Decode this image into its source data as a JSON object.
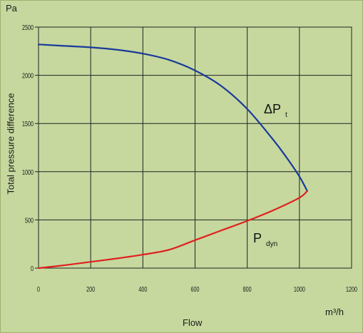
{
  "chart_data": {
    "type": "line",
    "title": "",
    "xlabel": "Flow",
    "ylabel": "Total pressure difference",
    "x_unit": "m³/h",
    "y_unit": "Pa",
    "xlim": [
      0,
      1200
    ],
    "ylim": [
      0,
      2500
    ],
    "x_ticks": [
      "0",
      "200",
      "400",
      "600",
      "800",
      "1000",
      "1200"
    ],
    "y_ticks": [
      "0",
      "500",
      "1000",
      "1500",
      "2000",
      "2500"
    ],
    "grid": true,
    "series": [
      {
        "name": "ΔPt",
        "label_main": "ΔP",
        "label_sub": "t",
        "color": "#1a3a9a",
        "x": [
          0,
          100,
          200,
          300,
          400,
          500,
          600,
          700,
          800,
          900,
          950,
          1000,
          1030
        ],
        "y": [
          2320,
          2305,
          2290,
          2265,
          2225,
          2160,
          2050,
          1890,
          1650,
          1330,
          1150,
          950,
          800
        ]
      },
      {
        "name": "Pdyn",
        "label_main": "P",
        "label_sub": "dyn",
        "color": "#e02020",
        "x": [
          0,
          100,
          200,
          300,
          400,
          500,
          600,
          700,
          800,
          900,
          1000,
          1030
        ],
        "y": [
          0,
          30,
          65,
          100,
          140,
          190,
          290,
          390,
          490,
          600,
          730,
          800
        ]
      }
    ]
  },
  "colors": {
    "background": "#c6d89e",
    "grid": "#222222"
  }
}
